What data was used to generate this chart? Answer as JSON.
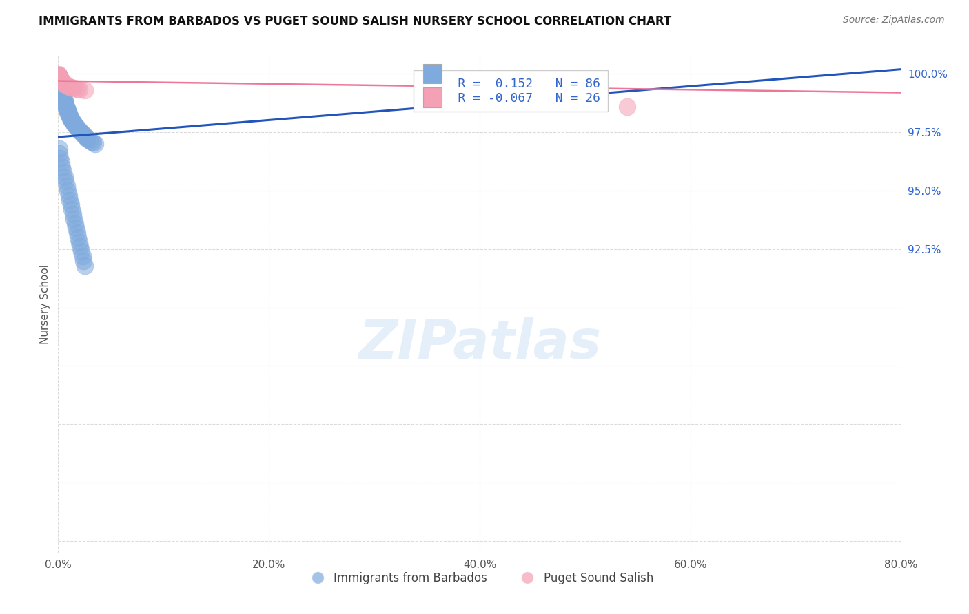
{
  "title": "IMMIGRANTS FROM BARBADOS VS PUGET SOUND SALISH NURSERY SCHOOL CORRELATION CHART",
  "source": "Source: ZipAtlas.com",
  "ylabel": "Nursery School",
  "xlim": [
    0.0,
    0.8
  ],
  "ylim": [
    0.795,
    1.008
  ],
  "xtick_vals": [
    0.0,
    0.2,
    0.4,
    0.6,
    0.8
  ],
  "xtick_labels": [
    "0.0%",
    "20.0%",
    "40.0%",
    "60.0%",
    "80.0%"
  ],
  "ytick_vals": [
    0.8,
    0.825,
    0.85,
    0.875,
    0.9,
    0.925,
    0.95,
    0.975,
    1.0
  ],
  "ytick_labels": [
    "",
    "",
    "",
    "",
    "",
    "92.5%",
    "95.0%",
    "97.5%",
    "100.0%"
  ],
  "legend_r1": "R =  0.152",
  "legend_n1": "N = 86",
  "legend_r2": "R = -0.067",
  "legend_n2": "N = 26",
  "blue_color": "#7faadd",
  "pink_color": "#f4a0b5",
  "blue_line_color": "#2255bb",
  "pink_line_color": "#ee7799",
  "watermark_text": "ZIPatlas",
  "background_color": "#ffffff",
  "title_fontsize": 12,
  "grid_color": "#cccccc",
  "blue_scatter_x": [
    0.0003,
    0.0005,
    0.0008,
    0.001,
    0.001,
    0.001,
    0.0012,
    0.0015,
    0.002,
    0.002,
    0.002,
    0.002,
    0.003,
    0.003,
    0.003,
    0.004,
    0.004,
    0.004,
    0.004,
    0.005,
    0.005,
    0.005,
    0.006,
    0.006,
    0.006,
    0.007,
    0.007,
    0.007,
    0.008,
    0.008,
    0.009,
    0.009,
    0.009,
    0.01,
    0.01,
    0.011,
    0.011,
    0.012,
    0.012,
    0.013,
    0.014,
    0.015,
    0.015,
    0.016,
    0.017,
    0.018,
    0.019,
    0.02,
    0.021,
    0.022,
    0.023,
    0.024,
    0.025,
    0.026,
    0.027,
    0.028,
    0.03,
    0.032,
    0.033,
    0.035,
    0.001,
    0.001,
    0.002,
    0.003,
    0.004,
    0.005,
    0.006,
    0.007,
    0.008,
    0.009,
    0.01,
    0.011,
    0.012,
    0.013,
    0.014,
    0.015,
    0.016,
    0.017,
    0.018,
    0.019,
    0.02,
    0.021,
    0.022,
    0.023,
    0.024,
    0.025
  ],
  "blue_scatter_y": [
    0.9995,
    0.999,
    0.9985,
    0.998,
    0.9975,
    0.997,
    0.9965,
    0.996,
    0.9955,
    0.995,
    0.9945,
    0.994,
    0.9935,
    0.993,
    0.9925,
    0.992,
    0.9915,
    0.991,
    0.9905,
    0.99,
    0.9895,
    0.989,
    0.9885,
    0.988,
    0.9875,
    0.987,
    0.9865,
    0.986,
    0.9855,
    0.985,
    0.9845,
    0.984,
    0.9835,
    0.983,
    0.9825,
    0.982,
    0.9815,
    0.981,
    0.9805,
    0.98,
    0.9795,
    0.979,
    0.9785,
    0.978,
    0.9775,
    0.977,
    0.9765,
    0.976,
    0.9755,
    0.975,
    0.9745,
    0.974,
    0.9735,
    0.973,
    0.9725,
    0.972,
    0.9715,
    0.971,
    0.9705,
    0.97,
    0.968,
    0.966,
    0.964,
    0.962,
    0.96,
    0.958,
    0.956,
    0.954,
    0.952,
    0.95,
    0.948,
    0.946,
    0.944,
    0.942,
    0.94,
    0.938,
    0.936,
    0.934,
    0.932,
    0.93,
    0.928,
    0.926,
    0.924,
    0.922,
    0.92,
    0.918
  ],
  "pink_scatter_x": [
    0.0003,
    0.0005,
    0.0008,
    0.001,
    0.001,
    0.0015,
    0.002,
    0.002,
    0.003,
    0.003,
    0.004,
    0.004,
    0.005,
    0.005,
    0.006,
    0.007,
    0.008,
    0.009,
    0.01,
    0.012,
    0.015,
    0.018,
    0.02,
    0.025,
    0.37,
    0.54
  ],
  "pink_scatter_y": [
    0.9998,
    0.9995,
    0.9992,
    0.999,
    0.9988,
    0.9985,
    0.9982,
    0.9979,
    0.9976,
    0.9973,
    0.997,
    0.9967,
    0.9964,
    0.9961,
    0.9958,
    0.9955,
    0.9952,
    0.9949,
    0.9946,
    0.9943,
    0.994,
    0.9937,
    0.9934,
    0.9931,
    0.991,
    0.986
  ],
  "blue_trendline_x": [
    0.0,
    0.8
  ],
  "blue_trendline_y": [
    0.973,
    1.002
  ],
  "pink_trendline_x": [
    0.0,
    0.8
  ],
  "pink_trendline_y": [
    0.997,
    0.992
  ]
}
